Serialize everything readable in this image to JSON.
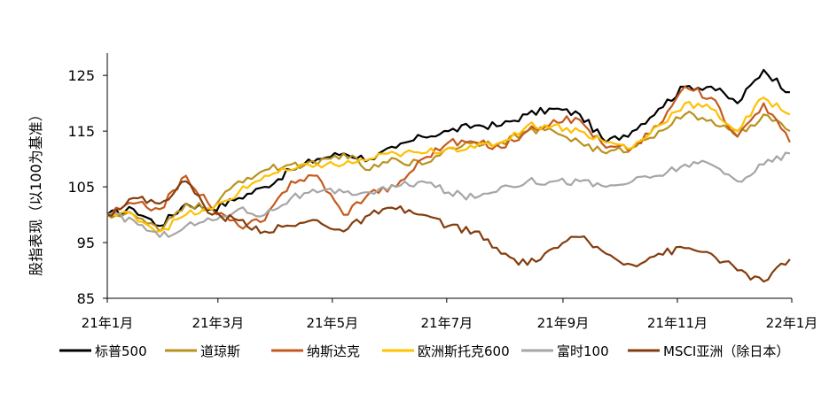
{
  "chart_data": {
    "type": "line",
    "title": "",
    "xlabel": "",
    "ylabel": "股指表现（以100为基准）",
    "ylim": [
      85,
      129
    ],
    "yticks": [
      85,
      95,
      105,
      115,
      125
    ],
    "xlim": [
      "2021-01-01",
      "2022-01-01"
    ],
    "xticks": [
      {
        "date": "2021-01-01",
        "label": "21年1月"
      },
      {
        "date": "2021-03-01",
        "label": "21年3月"
      },
      {
        "date": "2021-05-01",
        "label": "21年5月"
      },
      {
        "date": "2021-07-01",
        "label": "21年7月"
      },
      {
        "date": "2021-09-01",
        "label": "21年9月"
      },
      {
        "date": "2021-11-01",
        "label": "21年11月"
      },
      {
        "date": "2022-01-01",
        "label": "22年1月"
      }
    ],
    "grid": false,
    "legend_position": "bottom",
    "series": [
      {
        "name": "标普500",
        "color": "#000000",
        "x": [
          "2021-01-01",
          "2021-01-15",
          "2021-01-29",
          "2021-02-12",
          "2021-02-26",
          "2021-03-12",
          "2021-03-26",
          "2021-04-09",
          "2021-04-23",
          "2021-05-07",
          "2021-05-21",
          "2021-06-04",
          "2021-06-18",
          "2021-07-02",
          "2021-07-16",
          "2021-07-30",
          "2021-08-13",
          "2021-08-27",
          "2021-09-10",
          "2021-09-24",
          "2021-10-08",
          "2021-10-22",
          "2021-11-05",
          "2021-11-19",
          "2021-12-03",
          "2021-12-17",
          "2021-12-31"
        ],
        "y": [
          100,
          101,
          98,
          102,
          101,
          103,
          105,
          108,
          110,
          111,
          110,
          112,
          114,
          115,
          116,
          116,
          118,
          119,
          118,
          113,
          115,
          119,
          123,
          123,
          120,
          126,
          122
        ]
      },
      {
        "name": "道琼斯",
        "color": "#B8921E",
        "x": [
          "2021-01-01",
          "2021-01-15",
          "2021-01-29",
          "2021-02-12",
          "2021-02-26",
          "2021-03-12",
          "2021-03-26",
          "2021-04-09",
          "2021-04-23",
          "2021-05-07",
          "2021-05-21",
          "2021-06-04",
          "2021-06-18",
          "2021-07-02",
          "2021-07-16",
          "2021-07-30",
          "2021-08-13",
          "2021-08-27",
          "2021-09-10",
          "2021-09-24",
          "2021-10-08",
          "2021-10-22",
          "2021-11-05",
          "2021-11-19",
          "2021-12-03",
          "2021-12-17",
          "2021-12-31"
        ],
        "y": [
          100,
          100,
          97,
          102,
          101,
          106,
          108,
          109,
          109,
          111,
          108,
          110,
          109,
          112,
          113,
          113,
          115,
          115,
          113,
          111,
          112,
          115,
          118,
          117,
          114,
          118,
          115
        ]
      },
      {
        "name": "纳斯达克",
        "color": "#C55A1E",
        "x": [
          "2021-01-01",
          "2021-01-15",
          "2021-01-29",
          "2021-02-12",
          "2021-02-26",
          "2021-03-12",
          "2021-03-26",
          "2021-04-09",
          "2021-04-23",
          "2021-05-07",
          "2021-05-21",
          "2021-06-04",
          "2021-06-18",
          "2021-07-02",
          "2021-07-16",
          "2021-07-30",
          "2021-08-13",
          "2021-08-27",
          "2021-09-10",
          "2021-09-24",
          "2021-10-08",
          "2021-10-22",
          "2021-11-05",
          "2021-11-19",
          "2021-12-03",
          "2021-12-17",
          "2021-12-31"
        ],
        "y": [
          100,
          102,
          101,
          107,
          101,
          98,
          99,
          106,
          107,
          100,
          104,
          105,
          110,
          113,
          113,
          112,
          115,
          117,
          117,
          112,
          112,
          116,
          123,
          121,
          114,
          120,
          113
        ]
      },
      {
        "name": "欧洲斯托克600",
        "color": "#FFC000",
        "x": [
          "2021-01-01",
          "2021-01-15",
          "2021-01-29",
          "2021-02-12",
          "2021-02-26",
          "2021-03-12",
          "2021-03-26",
          "2021-04-09",
          "2021-04-23",
          "2021-05-07",
          "2021-05-21",
          "2021-06-04",
          "2021-06-18",
          "2021-07-02",
          "2021-07-16",
          "2021-07-30",
          "2021-08-13",
          "2021-08-27",
          "2021-09-10",
          "2021-09-24",
          "2021-10-08",
          "2021-10-22",
          "2021-11-05",
          "2021-11-19",
          "2021-12-03",
          "2021-12-17",
          "2021-12-31"
        ],
        "y": [
          100,
          100,
          97,
          100,
          101,
          104,
          107,
          108,
          109,
          109,
          110,
          111,
          111,
          112,
          112,
          113,
          116,
          116,
          115,
          113,
          112,
          116,
          120,
          119,
          115,
          121,
          118
        ]
      },
      {
        "name": "富时100",
        "color": "#A6A6A6",
        "x": [
          "2021-01-01",
          "2021-01-15",
          "2021-01-29",
          "2021-02-12",
          "2021-02-26",
          "2021-03-12",
          "2021-03-26",
          "2021-04-09",
          "2021-04-23",
          "2021-05-07",
          "2021-05-21",
          "2021-06-04",
          "2021-06-18",
          "2021-07-02",
          "2021-07-16",
          "2021-07-30",
          "2021-08-13",
          "2021-08-27",
          "2021-09-10",
          "2021-09-24",
          "2021-10-08",
          "2021-10-22",
          "2021-11-05",
          "2021-11-19",
          "2021-12-03",
          "2021-12-17",
          "2021-12-31"
        ],
        "y": [
          100,
          99,
          96,
          98,
          99,
          101,
          100,
          103,
          104,
          104,
          104,
          105,
          106,
          104,
          103,
          105,
          106,
          106,
          106,
          105,
          106,
          107,
          109,
          109,
          106,
          109,
          111
        ]
      },
      {
        "name": "MSCI亚洲（除日本）",
        "color": "#843C0C",
        "x": [
          "2021-01-01",
          "2021-01-15",
          "2021-01-29",
          "2021-02-12",
          "2021-02-26",
          "2021-03-12",
          "2021-03-26",
          "2021-04-09",
          "2021-04-23",
          "2021-05-07",
          "2021-05-21",
          "2021-06-04",
          "2021-06-18",
          "2021-07-02",
          "2021-07-16",
          "2021-07-30",
          "2021-08-13",
          "2021-08-27",
          "2021-09-10",
          "2021-09-24",
          "2021-10-08",
          "2021-10-22",
          "2021-11-05",
          "2021-11-19",
          "2021-12-03",
          "2021-12-17",
          "2021-12-31"
        ],
        "y": [
          100,
          103,
          102,
          106,
          100,
          99,
          97,
          98,
          99,
          97,
          100,
          101,
          100,
          98,
          97,
          93,
          91,
          94,
          96,
          93,
          91,
          93,
          94,
          93,
          90,
          88,
          92
        ]
      }
    ]
  }
}
